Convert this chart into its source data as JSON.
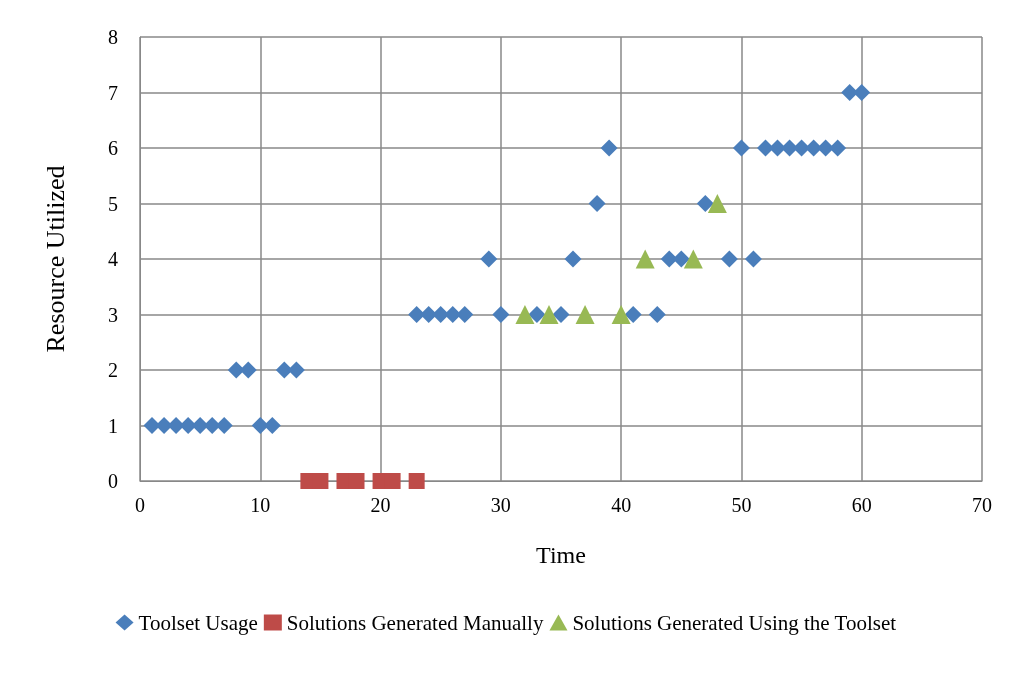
{
  "chart_data": {
    "type": "scatter",
    "xlabel": "Time",
    "ylabel": "Resource Utilized",
    "xlim": [
      0,
      70
    ],
    "xticks": [
      0,
      10,
      20,
      30,
      40,
      50,
      60,
      70
    ],
    "ylim": [
      0,
      8
    ],
    "yticks": [
      0,
      1,
      2,
      3,
      4,
      5,
      6,
      7,
      8
    ],
    "grid": true,
    "legend": "bottom",
    "series": [
      {
        "name": "Toolset Usage",
        "color": "#4a7ebb",
        "marker": "diamond",
        "x": [
          1,
          2,
          3,
          4,
          5,
          6,
          7,
          8,
          9,
          10,
          11,
          12,
          13,
          23,
          24,
          25,
          26,
          27,
          29,
          30,
          33,
          35,
          36,
          38,
          39,
          41,
          43,
          44,
          45,
          47,
          49,
          50,
          51,
          52,
          53,
          54,
          55,
          56,
          57,
          58,
          59,
          60
        ],
        "values": [
          1,
          1,
          1,
          1,
          1,
          1,
          1,
          2,
          2,
          1,
          1,
          2,
          2,
          3,
          3,
          3,
          3,
          3,
          4,
          3,
          3,
          3,
          4,
          5,
          6,
          3,
          3,
          4,
          4,
          5,
          4,
          6,
          4,
          6,
          6,
          6,
          6,
          6,
          6,
          6,
          7,
          7
        ]
      },
      {
        "name": "Solutions Generated Manually",
        "color": "#be4b48",
        "marker": "square",
        "x": [
          14,
          15,
          17,
          18,
          20,
          21,
          23
        ],
        "values": [
          0,
          0,
          0,
          0,
          0,
          0,
          0
        ]
      },
      {
        "name": "Solutions Generated Using the Toolset",
        "color": "#98b954",
        "marker": "triangle",
        "x": [
          32,
          34,
          37,
          40,
          42,
          46,
          48
        ],
        "values": [
          3,
          3,
          3,
          3,
          4,
          4,
          5
        ]
      }
    ]
  }
}
